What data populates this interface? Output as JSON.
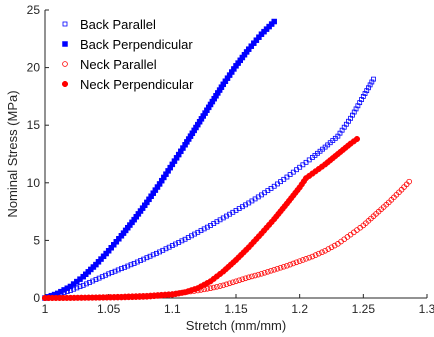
{
  "chart_data": {
    "type": "scatter",
    "xlabel": "Stretch (mm/mm)",
    "ylabel": "Nominal Stress (MPa)",
    "xlim": [
      1,
      1.3
    ],
    "ylim": [
      0,
      25
    ],
    "xticks": [
      "1",
      "1.05",
      "1.1",
      "1.15",
      "1.2",
      "1.25",
      "1.3"
    ],
    "yticks": [
      "0",
      "5",
      "10",
      "15",
      "20",
      "25"
    ],
    "grid": false,
    "legend_position": "top-left",
    "series": [
      {
        "name": "Back Parallel",
        "color": "#0000ff",
        "marker": "open-square",
        "points": [
          [
            1.0,
            0.0
          ],
          [
            1.01,
            0.3
          ],
          [
            1.02,
            0.65
          ],
          [
            1.03,
            1.1
          ],
          [
            1.04,
            1.6
          ],
          [
            1.05,
            2.1
          ],
          [
            1.06,
            2.55
          ],
          [
            1.07,
            3.0
          ],
          [
            1.08,
            3.5
          ],
          [
            1.09,
            4.0
          ],
          [
            1.1,
            4.55
          ],
          [
            1.11,
            5.1
          ],
          [
            1.12,
            5.7
          ],
          [
            1.13,
            6.3
          ],
          [
            1.14,
            6.95
          ],
          [
            1.15,
            7.6
          ],
          [
            1.16,
            8.25
          ],
          [
            1.17,
            8.95
          ],
          [
            1.18,
            9.7
          ],
          [
            1.19,
            10.5
          ],
          [
            1.2,
            11.35
          ],
          [
            1.21,
            12.2
          ],
          [
            1.22,
            13.1
          ],
          [
            1.23,
            14.05
          ],
          [
            1.24,
            15.6
          ],
          [
            1.25,
            17.5
          ],
          [
            1.258,
            19.0
          ]
        ]
      },
      {
        "name": "Back Perpendicular",
        "color": "#0000ff",
        "marker": "filled-square",
        "points": [
          [
            1.0,
            0.0
          ],
          [
            1.01,
            0.4
          ],
          [
            1.02,
            1.0
          ],
          [
            1.03,
            1.85
          ],
          [
            1.04,
            2.9
          ],
          [
            1.05,
            4.1
          ],
          [
            1.06,
            5.4
          ],
          [
            1.07,
            6.8
          ],
          [
            1.08,
            8.3
          ],
          [
            1.09,
            9.9
          ],
          [
            1.1,
            11.6
          ],
          [
            1.11,
            13.3
          ],
          [
            1.12,
            15.05
          ],
          [
            1.13,
            16.8
          ],
          [
            1.14,
            18.55
          ],
          [
            1.15,
            20.15
          ],
          [
            1.16,
            21.6
          ],
          [
            1.17,
            22.9
          ],
          [
            1.18,
            24.0
          ]
        ]
      },
      {
        "name": "Neck Parallel",
        "color": "#ff0000",
        "marker": "open-circle",
        "points": [
          [
            1.0,
            0.0
          ],
          [
            1.02,
            0.02
          ],
          [
            1.04,
            0.06
          ],
          [
            1.06,
            0.12
          ],
          [
            1.08,
            0.2
          ],
          [
            1.1,
            0.35
          ],
          [
            1.12,
            0.65
          ],
          [
            1.13,
            0.85
          ],
          [
            1.14,
            1.1
          ],
          [
            1.15,
            1.45
          ],
          [
            1.16,
            1.8
          ],
          [
            1.17,
            2.1
          ],
          [
            1.18,
            2.45
          ],
          [
            1.19,
            2.8
          ],
          [
            1.2,
            3.2
          ],
          [
            1.21,
            3.6
          ],
          [
            1.22,
            4.1
          ],
          [
            1.23,
            4.7
          ],
          [
            1.24,
            5.5
          ],
          [
            1.25,
            6.3
          ],
          [
            1.26,
            7.3
          ],
          [
            1.27,
            8.3
          ],
          [
            1.28,
            9.4
          ],
          [
            1.286,
            10.1
          ]
        ]
      },
      {
        "name": "Neck Perpendicular",
        "color": "#ff0000",
        "marker": "filled-circle",
        "points": [
          [
            1.0,
            0.0
          ],
          [
            1.02,
            0.01
          ],
          [
            1.04,
            0.03
          ],
          [
            1.06,
            0.06
          ],
          [
            1.08,
            0.12
          ],
          [
            1.1,
            0.3
          ],
          [
            1.11,
            0.5
          ],
          [
            1.12,
            0.85
          ],
          [
            1.13,
            1.45
          ],
          [
            1.14,
            2.3
          ],
          [
            1.15,
            3.3
          ],
          [
            1.16,
            4.4
          ],
          [
            1.17,
            5.6
          ],
          [
            1.18,
            6.85
          ],
          [
            1.19,
            8.2
          ],
          [
            1.2,
            9.6
          ],
          [
            1.205,
            10.4
          ],
          [
            1.21,
            10.8
          ],
          [
            1.22,
            11.6
          ],
          [
            1.23,
            12.5
          ],
          [
            1.24,
            13.4
          ],
          [
            1.245,
            13.8
          ]
        ]
      }
    ]
  }
}
